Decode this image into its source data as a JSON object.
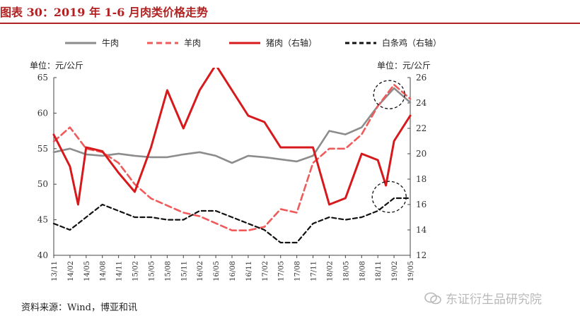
{
  "figure": {
    "title": "图表 30：2019 年 1-6 月肉类价格走势",
    "unit_left": "单位：元/公斤",
    "unit_right": "单位：元/公斤",
    "source": "资料来源：Wind，博亚和讯",
    "watermark": "东证衍生品研究院"
  },
  "colors": {
    "accent": "#b22222",
    "beef": "#8c8c8c",
    "mutton": "#ef5a5a",
    "pork": "#d7191c",
    "chicken": "#111111"
  },
  "chart_data": {
    "type": "line",
    "x_ticks": [
      "13/11",
      "14/02",
      "14/05",
      "14/08",
      "14/11",
      "15/02",
      "15/05",
      "15/08",
      "15/11",
      "16/02",
      "16/05",
      "16/08",
      "16/11",
      "17/02",
      "17/05",
      "17/08",
      "17/11",
      "18/02",
      "18/05",
      "18/08",
      "18/11",
      "19/02",
      "19/05"
    ],
    "ylim_left": [
      40,
      65
    ],
    "yticks_left": [
      "40",
      "45",
      "50",
      "55",
      "60",
      "65"
    ],
    "ylim_right": [
      12,
      26
    ],
    "yticks_right": [
      "12",
      "14",
      "16",
      "18",
      "20",
      "22",
      "24",
      "26"
    ],
    "series": [
      {
        "name": "牛肉",
        "axis": "left",
        "style": "solid",
        "x": [
          0,
          1,
          2,
          3,
          4,
          5,
          6,
          7,
          8,
          9,
          10,
          11,
          12,
          13,
          14,
          15,
          16,
          17,
          18,
          19,
          20,
          21,
          22
        ],
        "values": [
          54.5,
          55,
          54.2,
          54,
          54.3,
          54,
          53.8,
          53.8,
          54.2,
          54.5,
          54,
          53,
          54,
          53.8,
          53.5,
          53.2,
          54,
          57.5,
          57,
          58,
          61,
          63.5,
          61.5
        ]
      },
      {
        "name": "羊肉",
        "axis": "left",
        "style": "dash",
        "x": [
          0,
          1,
          2,
          3,
          4,
          5,
          6,
          7,
          8,
          9,
          10,
          11,
          12,
          13,
          14,
          15,
          16,
          17,
          18,
          19,
          20,
          21,
          22
        ],
        "values": [
          56,
          58,
          55,
          54.5,
          53,
          50,
          48,
          47,
          46,
          45.5,
          44.5,
          43.5,
          43.5,
          44,
          46.5,
          46,
          53,
          55,
          55,
          57,
          61,
          64,
          62
        ]
      },
      {
        "name": "猪肉（右轴）",
        "axis": "right",
        "style": "solid",
        "x": [
          0,
          1,
          1.5,
          2,
          3,
          4,
          5,
          6,
          7,
          8,
          9,
          10,
          11,
          12,
          13,
          14,
          15,
          16,
          17,
          18,
          19,
          20,
          20.5,
          21,
          22
        ],
        "values": [
          21.5,
          19,
          16,
          20.5,
          20.2,
          18.5,
          17,
          20.5,
          25,
          22,
          25,
          27,
          25,
          23,
          22.5,
          20.5,
          20.5,
          20.5,
          16,
          16.5,
          20,
          19.5,
          17.5,
          21,
          23
        ]
      },
      {
        "name": "白条鸡（右轴）",
        "axis": "right",
        "style": "dash",
        "x": [
          0,
          1,
          2,
          3,
          4,
          5,
          6,
          7,
          8,
          9,
          10,
          11,
          12,
          13,
          14,
          15,
          16,
          17,
          18,
          19,
          20,
          21,
          22
        ],
        "values": [
          14.5,
          14,
          15,
          16,
          15.5,
          15,
          15,
          14.8,
          14.8,
          15.5,
          15.5,
          15,
          14.5,
          14,
          13,
          13,
          14.5,
          15,
          14.8,
          15,
          15.5,
          16.5,
          16.5
        ]
      }
    ]
  }
}
